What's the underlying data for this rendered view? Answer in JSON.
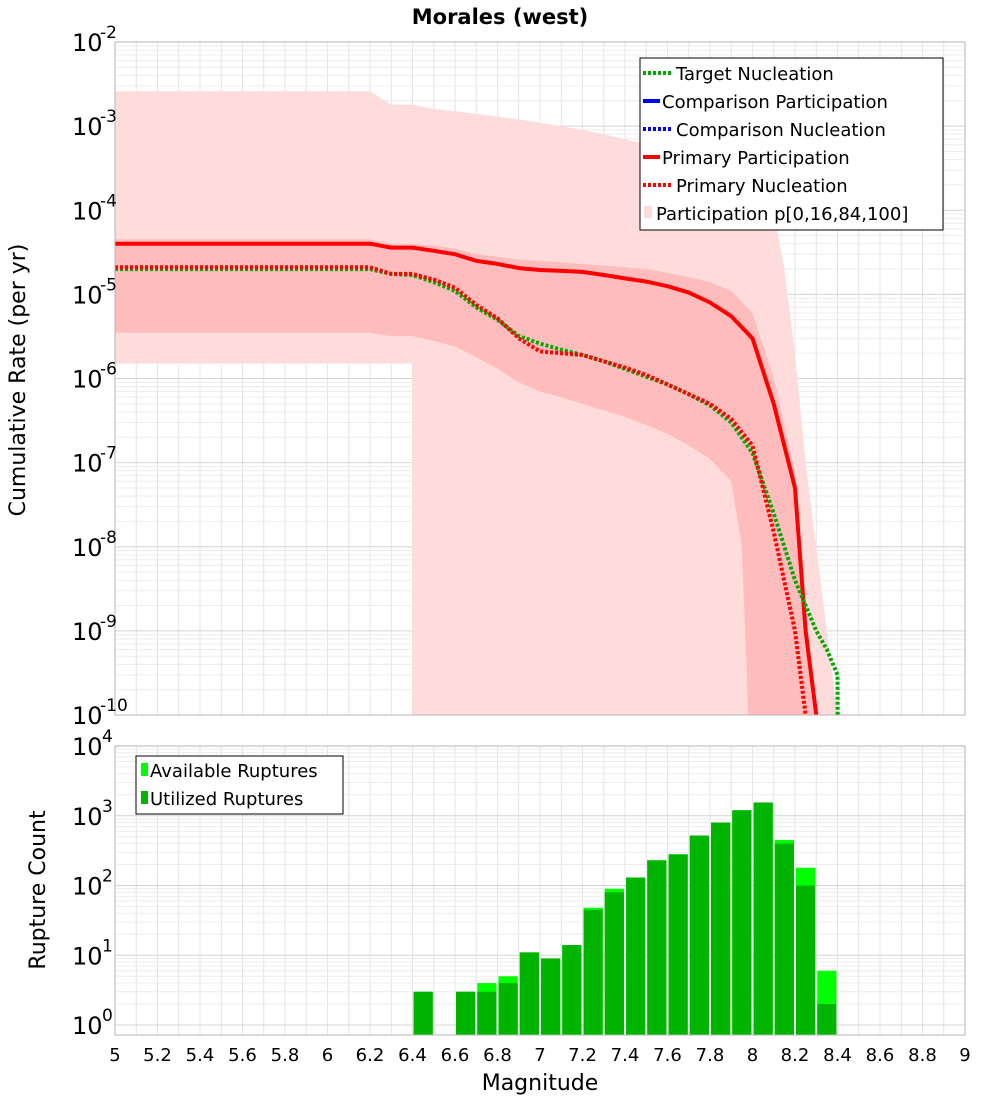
{
  "chart_data": [
    {
      "type": "line",
      "title": "Morales (west)",
      "ylabel": "Cumulative Rate (per yr)",
      "xlabel": "",
      "yscale": "log",
      "xlim": [
        5,
        9
      ],
      "ylim": [
        1e-10,
        0.01
      ],
      "y_tick_mantissa": "10",
      "y_tick_exponents": [
        "-10",
        "-9",
        "-8",
        "-7",
        "-6",
        "-5",
        "-4",
        "-3",
        "-2"
      ],
      "grid": true,
      "legend_position": "top-right",
      "legend": [
        "Target Nucleation",
        "Comparison Participation",
        "Comparison Nucleation",
        "Primary Participation",
        "Primary Nucleation",
        "Participation p[0,16,84,100]"
      ],
      "colors": {
        "target": "#00a800",
        "comparison": "#0000ff",
        "primary": "#ff0000",
        "band_outer": "#ffdcdc",
        "band_inner": "#ffbcbc"
      },
      "series": [
        {
          "name": "Target Nucleation",
          "style": "dotted",
          "color": "#00a800",
          "points": [
            [
              5.0,
              2e-05
            ],
            [
              5.2,
              2e-05
            ],
            [
              5.4,
              2e-05
            ],
            [
              5.6,
              2e-05
            ],
            [
              5.8,
              2e-05
            ],
            [
              6.0,
              2e-05
            ],
            [
              6.2,
              2e-05
            ],
            [
              6.3,
              1.75e-05
            ],
            [
              6.4,
              1.7e-05
            ],
            [
              6.5,
              1.4e-05
            ],
            [
              6.6,
              1.1e-05
            ],
            [
              6.7,
              7e-06
            ],
            [
              6.8,
              5e-06
            ],
            [
              6.9,
              3.2e-06
            ],
            [
              7.0,
              2.6e-06
            ],
            [
              7.1,
              2.2e-06
            ],
            [
              7.2,
              1.9e-06
            ],
            [
              7.3,
              1.6e-06
            ],
            [
              7.4,
              1.3e-06
            ],
            [
              7.5,
              1.05e-06
            ],
            [
              7.6,
              8.5e-07
            ],
            [
              7.7,
              6.5e-07
            ],
            [
              7.8,
              4.8e-07
            ],
            [
              7.9,
              3e-07
            ],
            [
              8.0,
              1.3e-07
            ],
            [
              8.1,
              2.5e-08
            ],
            [
              8.2,
              4e-09
            ],
            [
              8.3,
              1e-09
            ],
            [
              8.35,
              6e-10
            ],
            [
              8.4,
              3e-10
            ],
            [
              8.401,
              1e-10
            ]
          ]
        },
        {
          "name": "Primary Participation",
          "style": "solid",
          "color": "#ff0000",
          "points": [
            [
              5.0,
              4e-05
            ],
            [
              5.2,
              4e-05
            ],
            [
              5.4,
              4e-05
            ],
            [
              5.6,
              4e-05
            ],
            [
              5.8,
              4e-05
            ],
            [
              6.0,
              4e-05
            ],
            [
              6.2,
              4e-05
            ],
            [
              6.3,
              3.6e-05
            ],
            [
              6.4,
              3.6e-05
            ],
            [
              6.5,
              3.3e-05
            ],
            [
              6.6,
              3e-05
            ],
            [
              6.7,
              2.5e-05
            ],
            [
              6.8,
              2.3e-05
            ],
            [
              6.9,
              2.05e-05
            ],
            [
              7.0,
              1.95e-05
            ],
            [
              7.1,
              1.9e-05
            ],
            [
              7.2,
              1.85e-05
            ],
            [
              7.3,
              1.7e-05
            ],
            [
              7.4,
              1.55e-05
            ],
            [
              7.5,
              1.42e-05
            ],
            [
              7.6,
              1.25e-05
            ],
            [
              7.7,
              1.05e-05
            ],
            [
              7.8,
              8e-06
            ],
            [
              7.9,
              5.5e-06
            ],
            [
              8.0,
              3e-06
            ],
            [
              8.1,
              5e-07
            ],
            [
              8.2,
              5e-08
            ],
            [
              8.25,
              1e-09
            ],
            [
              8.3,
              1e-10
            ]
          ]
        },
        {
          "name": "Primary Nucleation",
          "style": "dotted",
          "color": "#ff0000",
          "points": [
            [
              5.0,
              2.1e-05
            ],
            [
              5.2,
              2.1e-05
            ],
            [
              5.4,
              2.1e-05
            ],
            [
              5.6,
              2.1e-05
            ],
            [
              5.8,
              2.1e-05
            ],
            [
              6.0,
              2.1e-05
            ],
            [
              6.2,
              2.1e-05
            ],
            [
              6.3,
              1.75e-05
            ],
            [
              6.4,
              1.75e-05
            ],
            [
              6.5,
              1.5e-05
            ],
            [
              6.6,
              1.2e-05
            ],
            [
              6.7,
              7.5e-06
            ],
            [
              6.8,
              5.2e-06
            ],
            [
              6.9,
              3e-06
            ],
            [
              7.0,
              2.1e-06
            ],
            [
              7.1,
              2e-06
            ],
            [
              7.2,
              1.9e-06
            ],
            [
              7.3,
              1.6e-06
            ],
            [
              7.4,
              1.35e-06
            ],
            [
              7.5,
              1.1e-06
            ],
            [
              7.6,
              8.5e-07
            ],
            [
              7.7,
              6.5e-07
            ],
            [
              7.8,
              5e-07
            ],
            [
              7.9,
              3.3e-07
            ],
            [
              8.0,
              1.6e-07
            ],
            [
              8.1,
              1.5e-08
            ],
            [
              8.2,
              1e-09
            ],
            [
              8.25,
              1e-10
            ]
          ]
        }
      ],
      "bands": [
        {
          "name": "p0-p100",
          "upper": [
            [
              5.0,
              0.0026
            ],
            [
              6.2,
              0.0026
            ],
            [
              6.3,
              0.0018
            ],
            [
              6.4,
              0.0018
            ],
            [
              6.5,
              0.0016
            ],
            [
              6.6,
              0.0015
            ],
            [
              6.7,
              0.0014
            ],
            [
              6.8,
              0.0013
            ],
            [
              6.9,
              0.0012
            ],
            [
              7.0,
              0.0011
            ],
            [
              7.1,
              0.001
            ],
            [
              7.2,
              0.0009
            ],
            [
              7.3,
              0.0008
            ],
            [
              7.4,
              0.0007
            ],
            [
              7.5,
              0.0006
            ],
            [
              7.6,
              0.0005
            ],
            [
              7.7,
              0.00045
            ],
            [
              7.8,
              0.0004
            ],
            [
              7.9,
              0.00035
            ],
            [
              8.0,
              0.00028
            ],
            [
              8.1,
              0.0001
            ],
            [
              8.15,
              2e-05
            ],
            [
              8.2,
              2e-06
            ],
            [
              8.25,
              1e-07
            ],
            [
              8.3,
              1e-08
            ],
            [
              8.35,
              1e-09
            ],
            [
              8.4,
              1e-10
            ]
          ],
          "lower": [
            [
              5.0,
              1.5e-06
            ],
            [
              6.4,
              1.5e-06
            ],
            [
              6.4001,
              1e-10
            ],
            [
              8.4,
              1e-10
            ]
          ]
        },
        {
          "name": "p16-p84",
          "upper": [
            [
              5.0,
              4.5e-05
            ],
            [
              6.2,
              4.5e-05
            ],
            [
              6.3,
              4e-05
            ],
            [
              6.4,
              4e-05
            ],
            [
              6.5,
              3.8e-05
            ],
            [
              6.6,
              3.5e-05
            ],
            [
              6.7,
              3e-05
            ],
            [
              6.8,
              2.8e-05
            ],
            [
              6.9,
              2.6e-05
            ],
            [
              7.0,
              2.5e-05
            ],
            [
              7.1,
              2.4e-05
            ],
            [
              7.2,
              2.3e-05
            ],
            [
              7.3,
              2.2e-05
            ],
            [
              7.4,
              2.1e-05
            ],
            [
              7.5,
              2e-05
            ],
            [
              7.6,
              1.8e-05
            ],
            [
              7.7,
              1.6e-05
            ],
            [
              7.8,
              1.4e-05
            ],
            [
              7.9,
              1.1e-05
            ],
            [
              8.0,
              6e-06
            ],
            [
              8.1,
              1e-06
            ],
            [
              8.2,
              8e-08
            ],
            [
              8.25,
              2e-09
            ],
            [
              8.3,
              1e-10
            ]
          ],
          "lower": [
            [
              5.0,
              3.5e-06
            ],
            [
              6.2,
              3.5e-06
            ],
            [
              6.3,
              3.2e-06
            ],
            [
              6.4,
              3.2e-06
            ],
            [
              6.5,
              2.8e-06
            ],
            [
              6.6,
              2.4e-06
            ],
            [
              6.7,
              1.8e-06
            ],
            [
              6.8,
              1.3e-06
            ],
            [
              6.9,
              9e-07
            ],
            [
              7.0,
              7e-07
            ],
            [
              7.1,
              6e-07
            ],
            [
              7.2,
              5e-07
            ],
            [
              7.3,
              4.2e-07
            ],
            [
              7.4,
              3.5e-07
            ],
            [
              7.5,
              2.8e-07
            ],
            [
              7.6,
              2.2e-07
            ],
            [
              7.7,
              1.6e-07
            ],
            [
              7.8,
              1.1e-07
            ],
            [
              7.9,
              6e-08
            ],
            [
              7.95,
              1e-08
            ],
            [
              7.98,
              1e-10
            ],
            [
              8.3,
              1e-10
            ]
          ]
        }
      ]
    },
    {
      "type": "bar",
      "title": "",
      "xlabel": "Magnitude",
      "ylabel": "Rupture Count",
      "yscale": "log",
      "xlim": [
        5,
        9
      ],
      "ylim": [
        0.72,
        10000
      ],
      "x_ticks": [
        "5",
        "5.2",
        "5.4",
        "5.6",
        "5.8",
        "6",
        "6.2",
        "6.4",
        "6.6",
        "6.8",
        "7",
        "7.2",
        "7.4",
        "7.6",
        "7.8",
        "8",
        "8.2",
        "8.4",
        "8.6",
        "8.8",
        "9"
      ],
      "y_tick_mantissa": "10",
      "y_tick_exponents": [
        "0",
        "1",
        "2",
        "3",
        "4"
      ],
      "grid": true,
      "legend_position": "top-left",
      "legend": [
        "Available Ruptures",
        "Utilized Ruptures"
      ],
      "colors": {
        "available": "#00ff00",
        "utilized": "#00b400"
      },
      "bar_centers": [
        6.45,
        6.65,
        6.75,
        6.85,
        6.95,
        7.05,
        7.15,
        7.25,
        7.35,
        7.45,
        7.55,
        7.65,
        7.75,
        7.85,
        7.95,
        8.05,
        8.15,
        8.25,
        8.35
      ],
      "series": [
        {
          "name": "Available Ruptures",
          "values": [
            3,
            3,
            4,
            5,
            11,
            9,
            14,
            48,
            90,
            130,
            230,
            280,
            520,
            800,
            1200,
            1550,
            450,
            180,
            6
          ]
        },
        {
          "name": "Utilized Ruptures",
          "values": [
            3,
            3,
            3,
            4,
            11,
            9,
            14,
            45,
            80,
            130,
            230,
            280,
            520,
            800,
            1200,
            1550,
            400,
            100,
            2
          ]
        }
      ]
    }
  ]
}
